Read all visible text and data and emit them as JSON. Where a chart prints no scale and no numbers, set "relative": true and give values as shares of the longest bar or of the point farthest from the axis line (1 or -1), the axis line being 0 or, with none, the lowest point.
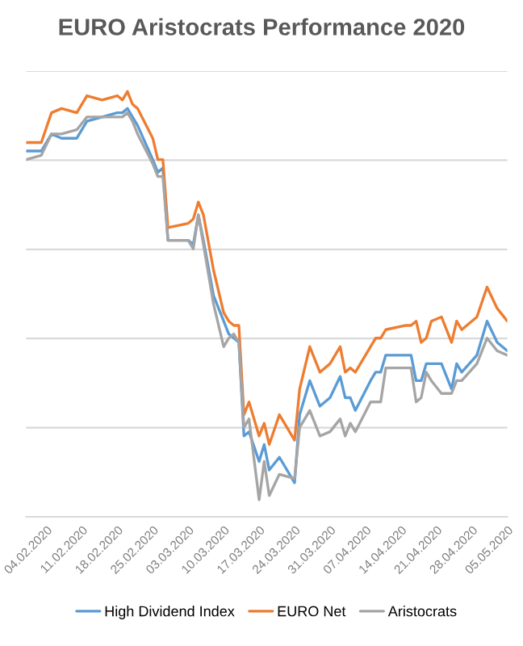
{
  "chart_data": {
    "type": "line",
    "title": "EURO Aristocrats Performance 2020",
    "relative": true,
    "x": [
      "2020-01-31",
      "2020-02-03",
      "2020-02-05",
      "2020-02-07",
      "2020-02-10",
      "2020-02-12",
      "2020-02-15",
      "2020-02-18",
      "2020-02-19",
      "2020-02-20",
      "2020-02-21",
      "2020-02-22",
      "2020-02-25",
      "2020-02-26",
      "2020-02-27",
      "2020-02-28",
      "2020-03-03",
      "2020-03-04",
      "2020-03-05",
      "2020-03-06",
      "2020-03-08",
      "2020-03-10",
      "2020-03-11",
      "2020-03-12",
      "2020-03-13",
      "2020-03-14",
      "2020-03-15",
      "2020-03-17",
      "2020-03-18",
      "2020-03-19",
      "2020-03-21",
      "2020-03-24",
      "2020-03-25",
      "2020-03-27",
      "2020-03-29",
      "2020-03-31",
      "2020-04-02",
      "2020-04-03",
      "2020-04-04",
      "2020-04-05",
      "2020-04-08",
      "2020-04-09",
      "2020-04-10",
      "2020-04-11",
      "2020-04-15",
      "2020-04-16",
      "2020-04-17",
      "2020-04-18",
      "2020-04-19",
      "2020-04-20",
      "2020-04-22",
      "2020-04-24",
      "2020-04-25",
      "2020-04-26",
      "2020-04-29",
      "2020-05-01",
      "2020-05-03",
      "2020-05-05"
    ],
    "series": [
      {
        "name": "High Dividend Index",
        "color": "#5b9bd5",
        "values": [
          0.86,
          0.86,
          0.9,
          0.89,
          0.89,
          0.93,
          0.94,
          0.95,
          0.95,
          0.96,
          0.94,
          0.92,
          0.84,
          0.81,
          0.82,
          0.65,
          0.65,
          0.64,
          0.71,
          0.65,
          0.52,
          0.46,
          0.43,
          0.42,
          0.41,
          0.19,
          0.2,
          0.13,
          0.17,
          0.11,
          0.14,
          0.08,
          0.24,
          0.32,
          0.26,
          0.28,
          0.33,
          0.28,
          0.28,
          0.25,
          0.32,
          0.34,
          0.34,
          0.38,
          0.38,
          0.38,
          0.32,
          0.32,
          0.36,
          0.36,
          0.36,
          0.3,
          0.36,
          0.34,
          0.38,
          0.46,
          0.41,
          0.39
        ]
      },
      {
        "name": "EURO Net",
        "color": "#ed7d31",
        "values": [
          0.88,
          0.88,
          0.95,
          0.96,
          0.95,
          0.99,
          0.98,
          0.99,
          0.98,
          1.0,
          0.97,
          0.96,
          0.89,
          0.84,
          0.84,
          0.68,
          0.69,
          0.7,
          0.74,
          0.71,
          0.58,
          0.48,
          0.46,
          0.45,
          0.45,
          0.24,
          0.27,
          0.19,
          0.22,
          0.17,
          0.24,
          0.18,
          0.3,
          0.4,
          0.34,
          0.36,
          0.4,
          0.34,
          0.35,
          0.34,
          0.4,
          0.42,
          0.42,
          0.44,
          0.45,
          0.45,
          0.46,
          0.41,
          0.42,
          0.46,
          0.47,
          0.41,
          0.46,
          0.44,
          0.47,
          0.54,
          0.49,
          0.46
        ]
      },
      {
        "name": "Aristocrats",
        "color": "#a5a5a5",
        "values": [
          0.84,
          0.85,
          0.9,
          0.9,
          0.91,
          0.94,
          0.94,
          0.94,
          0.94,
          0.95,
          0.93,
          0.9,
          0.83,
          0.8,
          0.8,
          0.65,
          0.65,
          0.63,
          0.71,
          0.64,
          0.5,
          0.4,
          0.42,
          0.43,
          0.41,
          0.21,
          0.23,
          0.04,
          0.13,
          0.05,
          0.1,
          0.09,
          0.21,
          0.25,
          0.19,
          0.2,
          0.23,
          0.19,
          0.22,
          0.2,
          0.27,
          0.27,
          0.27,
          0.35,
          0.35,
          0.35,
          0.27,
          0.28,
          0.34,
          0.32,
          0.29,
          0.29,
          0.32,
          0.32,
          0.36,
          0.42,
          0.39,
          0.38
        ]
      }
    ],
    "xlim": [
      "2020-01-31",
      "2020-05-05"
    ],
    "xticks": [
      {
        "value": "2020-02-04",
        "label": "04.02.2020"
      },
      {
        "value": "2020-02-11",
        "label": "11.02.2020"
      },
      {
        "value": "2020-02-18",
        "label": "18.02.2020"
      },
      {
        "value": "2020-02-25",
        "label": "25.02.2020"
      },
      {
        "value": "2020-03-03",
        "label": "03.03.2020"
      },
      {
        "value": "2020-03-10",
        "label": "10.03.2020"
      },
      {
        "value": "2020-03-17",
        "label": "17.03.2020"
      },
      {
        "value": "2020-03-24",
        "label": "24.03.2020"
      },
      {
        "value": "2020-03-31",
        "label": "31.03.2020"
      },
      {
        "value": "2020-04-07",
        "label": "07.04.2020"
      },
      {
        "value": "2020-04-14",
        "label": "14.04.2020"
      },
      {
        "value": "2020-04-21",
        "label": "21.04.2020"
      },
      {
        "value": "2020-04-28",
        "label": "28.04.2020"
      },
      {
        "value": "2020-05-05",
        "label": "05.05.2020"
      }
    ],
    "grid": "y",
    "legend": "bottom",
    "marker": "none",
    "line_style": "solid"
  }
}
